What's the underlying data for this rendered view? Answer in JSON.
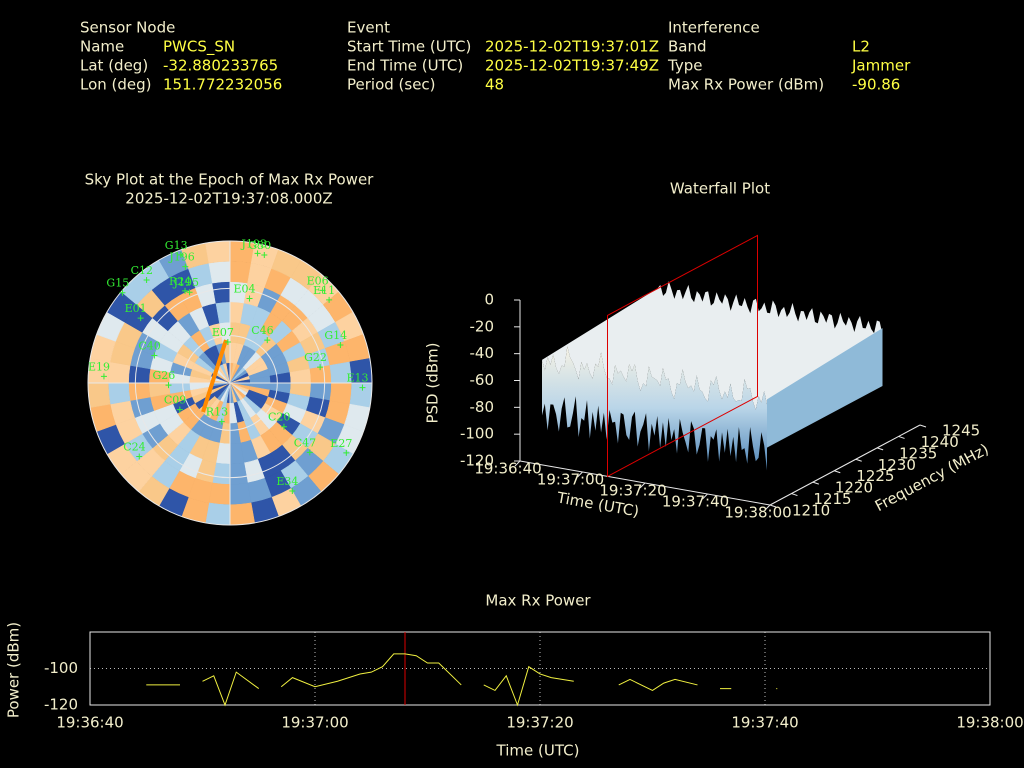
{
  "header": {
    "sensor": {
      "title": "Sensor Node",
      "rows": [
        [
          "Name",
          "PWCS_SN"
        ],
        [
          "Lat (deg)",
          -32.880233765
        ],
        [
          "Lon (deg)",
          151.772232056
        ]
      ]
    },
    "event": {
      "title": "Event",
      "rows": [
        [
          "Start Time (UTC)",
          "2025-12-02T19:37:01Z"
        ],
        [
          "End Time (UTC)",
          "2025-12-02T19:37:49Z"
        ],
        [
          "Period (sec)",
          48
        ]
      ]
    },
    "interference": {
      "title": "Interference",
      "rows": [
        [
          "Band",
          "L2"
        ],
        [
          "Type",
          "Jammer"
        ],
        [
          "Max Rx Power (dBm)",
          -90.86
        ]
      ]
    }
  },
  "chart_data": [
    {
      "type": "sky",
      "title": "Sky Plot at the Epoch of Max Rx Power",
      "subtitle": "2025-12-02T19:37:08.000Z",
      "color": "#33ee33",
      "elevation_rings": [
        0,
        30,
        60
      ],
      "labels": [
        "G13",
        "J196",
        "J193",
        "G30",
        "C12",
        "R24",
        "J195",
        "G15",
        "E01",
        "E04",
        "E06",
        "E11",
        "G14",
        "G22",
        "E13",
        "E27",
        "C47",
        "E34",
        "C24",
        "E19",
        "C40",
        "G26",
        "C09",
        "R13",
        "E07",
        "C46",
        "C20"
      ],
      "az": [
        339,
        339,
        12,
        15,
        321,
        334,
        336,
        310,
        306,
        13,
        45,
        50,
        71,
        80,
        92,
        121,
        131,
        150,
        231,
        273,
        290,
        268,
        242,
        192,
        357,
        41,
        129
      ],
      "el": [
        3,
        11,
        6,
        6,
        6,
        25,
        27,
        1,
        20,
        35,
        7,
        8,
        16,
        32,
        6,
        4,
        23,
        11,
        16,
        10,
        39,
        51,
        54,
        65,
        64,
        54,
        46
      ]
    },
    {
      "type": "waterfall",
      "title": "Waterfall Plot",
      "xlabel": "Time (UTC)",
      "ylabel": "Frequency (MHz)",
      "zlabel": "PSD (dBm)",
      "xlim": [
        "19:36:40",
        "19:38:00"
      ],
      "xticks": [
        "19:36:40",
        "19:37:00",
        "19:37:20",
        "19:37:40",
        "19:38:00"
      ],
      "ylim": [
        1210,
        1245
      ],
      "yticks": [
        1210,
        1215,
        1220,
        1225,
        1230,
        1235,
        1240,
        1245
      ],
      "zlim": [
        -120,
        0
      ],
      "zticks": [
        0,
        -20,
        -40,
        -60,
        -80,
        -100,
        -120
      ],
      "marker": {
        "x": "19:37:08",
        "color": "#dd0000"
      }
    },
    {
      "type": "line",
      "title": "Max Rx Power",
      "xlabel": "Time (UTC)",
      "ylabel": "Power (dBm)",
      "color": "#f0f040",
      "grid": true,
      "xlim": [
        "19:36:40",
        "19:38:00"
      ],
      "xticks": [
        "19:36:40",
        "19:37:00",
        "19:37:20",
        "19:37:40",
        "19:38:00"
      ],
      "ylim": [
        -120,
        -80
      ],
      "yticks": [
        -120,
        -100
      ],
      "marker": {
        "x": "19:37:08",
        "color": "#dd0000"
      },
      "x": [
        "19:36:45",
        "19:36:48",
        "19:36:49",
        "19:36:50",
        "19:36:51",
        "19:36:52",
        "19:36:53",
        "19:36:55",
        "19:36:56",
        "19:36:57",
        "19:36:58",
        "19:37:00",
        "19:37:02",
        "19:37:04",
        "19:37:05",
        "19:37:06",
        "19:37:07",
        "19:37:08",
        "19:37:09",
        "19:37:10",
        "19:37:11",
        "19:37:13",
        "19:37:14",
        "19:37:15",
        "19:37:16",
        "19:37:17",
        "19:37:18",
        "19:37:19",
        "19:37:20",
        "19:37:21",
        "19:37:23",
        "19:37:25",
        "19:37:27",
        "19:37:28",
        "19:37:30",
        "19:37:31",
        "19:37:32",
        "19:37:34",
        "19:37:35",
        "19:37:36",
        "19:37:37",
        "19:37:39",
        "19:37:41"
      ],
      "values": [
        -109,
        -109,
        null,
        -107,
        -104,
        -120,
        -102,
        -111,
        null,
        -110,
        -105,
        -110,
        -107,
        -103,
        -102,
        -99,
        -92,
        -92,
        -93,
        -97,
        -97,
        -109,
        null,
        -109,
        -112,
        -104,
        -120,
        -99,
        -103,
        -105,
        -107,
        null,
        -109,
        -106,
        -112,
        -108,
        -106,
        -109,
        null,
        -111,
        -111,
        null,
        -111
      ]
    }
  ]
}
